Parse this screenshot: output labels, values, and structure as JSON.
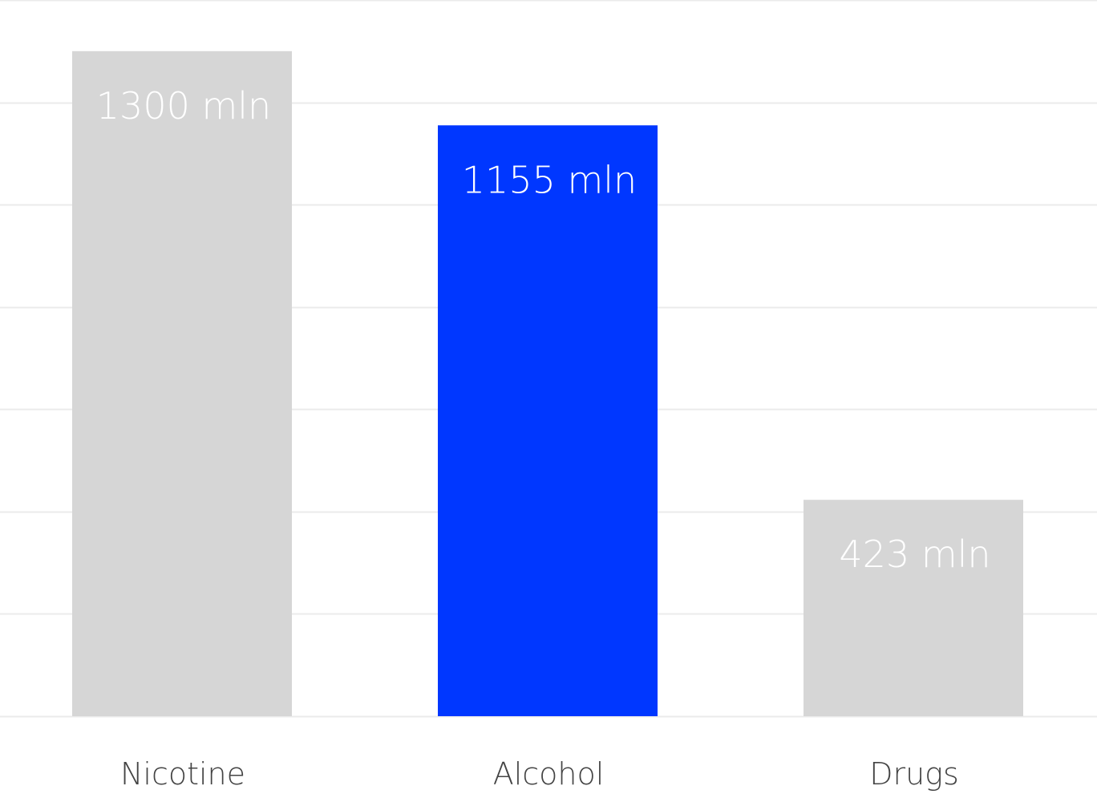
{
  "chart_data": {
    "type": "bar",
    "categories": [
      "Nicotine",
      "Alcohol",
      "Drugs"
    ],
    "values": [
      1300,
      1155,
      423
    ],
    "data_labels": [
      "1300 mln",
      "1155 mln",
      "423 mln"
    ],
    "title": "",
    "xlabel": "",
    "ylabel": "",
    "ylim": [
      0,
      1400
    ],
    "grid": true,
    "legend": "none",
    "colors": [
      "#d6d6d6",
      "#0037ff",
      "#d6d6d6"
    ],
    "highlight_index": 1
  }
}
